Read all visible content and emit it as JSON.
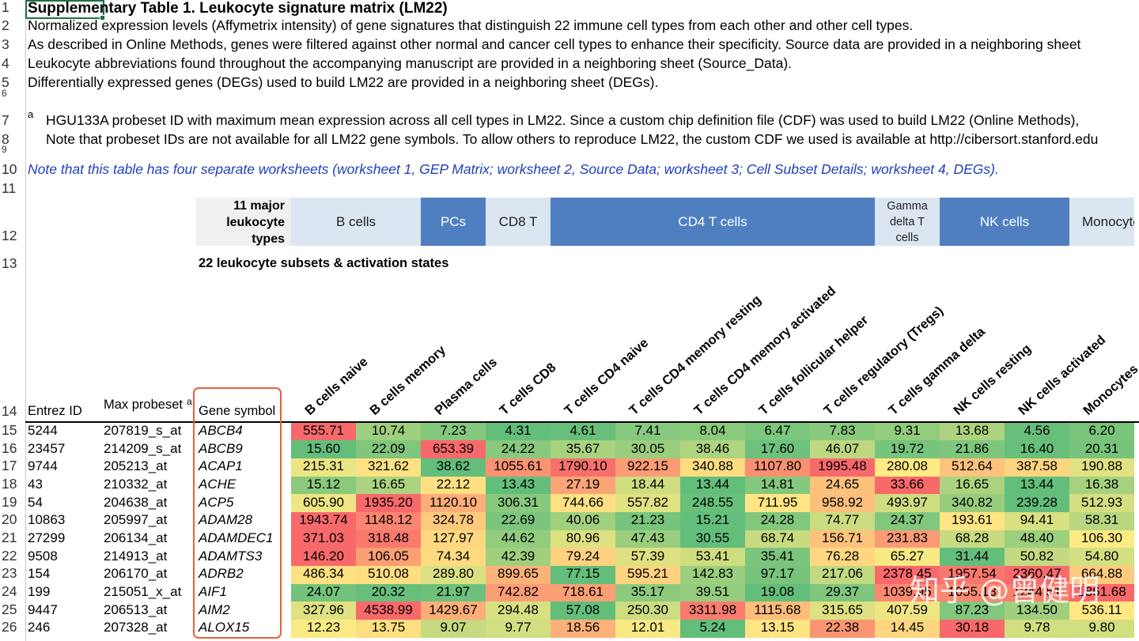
{
  "row_numbers": [
    "1",
    "2",
    "3",
    "4",
    "5",
    "6",
    "7",
    "8",
    "9",
    "10",
    "11",
    "12",
    "13",
    "14",
    "15",
    "16",
    "17",
    "18",
    "19",
    "20",
    "21",
    "22",
    "23",
    "24",
    "25",
    "26"
  ],
  "title": "Supplementary Table 1. Leukocyte signature matrix (LM22)",
  "notes": [
    "Normalized expression levels (Affymetrix intensity) of gene signatures that distinguish 22 immune cell types from each other and other cell types.",
    "As described in Online Methods, genes were filtered against other normal and cancer cell types to enhance their specificity. Source data are provided in a neighboring sheet",
    "Leukocyte abbreviations found throughout the accompanying manuscript are provided in a neighboring sheet (Source_Data).",
    "Differentially expressed genes (DEGs) used to build LM22 are provided in a neighboring sheet (DEGs)."
  ],
  "footnote": {
    "marker": "a",
    "lines": [
      "HGU133A probeset ID with maximum mean expression across all cell types in LM22. Since a custom chip definition file (CDF) was used to build LM22 (Online Methods),",
      "Note that probeset IDs are not available for all LM22 gene symbols. To allow others to reproduce LM22, the custom CDF we used is available at http://cibersort.stanford.edu"
    ]
  },
  "worksheet_note": "Note that this table has four separate worksheets (worksheet 1, GEP Matrix; worksheet 2, Source Data; worksheet 3; Cell Subset Details; worksheet 4, DEGs).",
  "group_label": "11 major leukocyte types",
  "groups": [
    {
      "label": "B cells",
      "span": 2,
      "style": "light"
    },
    {
      "label": "PCs",
      "span": 1,
      "style": "dark"
    },
    {
      "label": "CD8 T",
      "span": 1,
      "style": "light"
    },
    {
      "label": "CD4 T cells",
      "span": 5,
      "style": "dark"
    },
    {
      "label": "Gamma delta T cells",
      "span": 1,
      "style": "light"
    },
    {
      "label": "NK cells",
      "span": 2,
      "style": "dark"
    },
    {
      "label": "Monocytes",
      "span": 1,
      "style": "light"
    }
  ],
  "subsets_label": "22 leukocyte subsets & activation states",
  "columns": {
    "entrez": "Entrez ID",
    "probeset": "Max probeset",
    "probeset_marker": "a",
    "gene": "Gene symbol"
  },
  "subsets": [
    "B cells naive",
    "B cells memory",
    "Plasma cells",
    "T cells CD8",
    "T cells CD4 naive",
    "T cells CD4 memory resting",
    "T cells CD4 memory activated",
    "T cells follicular helper",
    "T cells regulatory (Tregs)",
    "T cells gamma delta",
    "NK cells resting",
    "NK cells activated",
    "Monocytes"
  ],
  "table": {
    "rows": [
      [
        "5244",
        "207819_s_at",
        "ABCB4",
        "555.71",
        "10.74",
        "7.23",
        "4.31",
        "4.61",
        "7.41",
        "8.04",
        "6.47",
        "7.83",
        "9.31",
        "13.68",
        "4.56",
        "6.20"
      ],
      [
        "23457",
        "214209_s_at",
        "ABCB9",
        "15.60",
        "22.09",
        "653.39",
        "24.22",
        "35.67",
        "30.05",
        "38.46",
        "17.60",
        "46.07",
        "19.72",
        "21.86",
        "16.40",
        "20.31"
      ],
      [
        "9744",
        "205213_at",
        "ACAP1",
        "215.31",
        "321.62",
        "38.62",
        "1055.61",
        "1790.10",
        "922.15",
        "340.88",
        "1107.80",
        "1995.48",
        "280.08",
        "512.64",
        "387.58",
        "190.88"
      ],
      [
        "43",
        "210332_at",
        "ACHE",
        "15.12",
        "16.65",
        "22.12",
        "13.43",
        "27.19",
        "18.44",
        "13.44",
        "14.81",
        "24.65",
        "33.66",
        "16.65",
        "13.44",
        "16.38"
      ],
      [
        "54",
        "204638_at",
        "ACP5",
        "605.90",
        "1935.20",
        "1120.10",
        "306.31",
        "744.66",
        "557.82",
        "248.55",
        "711.95",
        "958.92",
        "493.97",
        "340.82",
        "239.28",
        "512.93"
      ],
      [
        "10863",
        "205997_at",
        "ADAM28",
        "1943.74",
        "1148.12",
        "324.78",
        "22.69",
        "40.06",
        "21.23",
        "15.21",
        "24.28",
        "74.77",
        "24.37",
        "193.61",
        "94.41",
        "58.31"
      ],
      [
        "27299",
        "206134_at",
        "ADAMDEC1",
        "371.03",
        "318.48",
        "127.97",
        "44.62",
        "80.96",
        "47.43",
        "30.55",
        "68.74",
        "156.71",
        "231.83",
        "68.28",
        "48.40",
        "106.30"
      ],
      [
        "9508",
        "214913_at",
        "ADAMTS3",
        "146.20",
        "106.05",
        "74.34",
        "42.39",
        "79.24",
        "57.39",
        "53.41",
        "35.41",
        "76.28",
        "65.27",
        "31.44",
        "50.82",
        "54.80"
      ],
      [
        "154",
        "206170_at",
        "ADRB2",
        "486.34",
        "510.08",
        "289.80",
        "899.65",
        "77.15",
        "595.21",
        "142.83",
        "97.17",
        "217.06",
        "2378.45",
        "1957.54",
        "2360.47",
        "664.88"
      ],
      [
        "199",
        "215051_x_at",
        "AIF1",
        "24.07",
        "20.32",
        "21.97",
        "742.82",
        "718.61",
        "35.17",
        "39.51",
        "19.08",
        "29.37",
        "1039.95",
        "1055.13",
        "1244.51",
        "1861.68"
      ],
      [
        "9447",
        "206513_at",
        "AIM2",
        "327.96",
        "4538.99",
        "1429.67",
        "294.48",
        "57.08",
        "250.30",
        "3311.98",
        "1115.68",
        "315.65",
        "407.59",
        "87.23",
        "134.50",
        "536.11"
      ],
      [
        "246",
        "207328_at",
        "ALOX15",
        "12.23",
        "13.75",
        "9.07",
        "9.77",
        "18.56",
        "12.01",
        "5.24",
        "13.15",
        "22.38",
        "14.45",
        "30.18",
        "9.78",
        "9.80"
      ]
    ]
  },
  "watermark": "知乎 @曾健明"
}
